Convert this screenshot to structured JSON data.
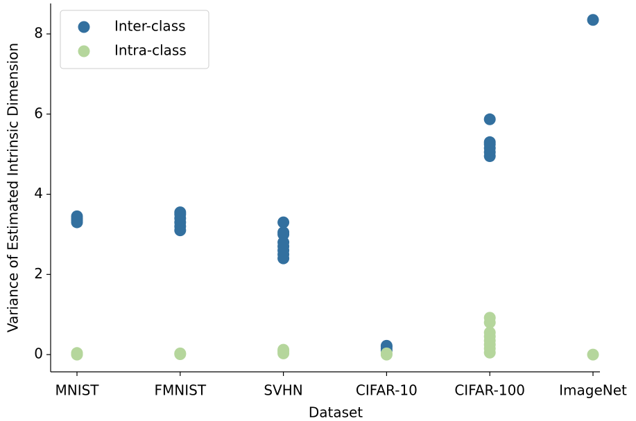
{
  "chart_data": {
    "type": "scatter",
    "xlabel": "Dataset",
    "ylabel": "Variance of Estimated Intrinsic Dimension",
    "categories": [
      "MNIST",
      "FMNIST",
      "SVHN",
      "CIFAR-10",
      "CIFAR-100",
      "ImageNet"
    ],
    "ylim": [
      -0.43,
      8.76
    ],
    "yticks": [
      0,
      2,
      4,
      6,
      8
    ],
    "legend": "upper left",
    "series": [
      {
        "name": "Inter-class",
        "color": "#33709f",
        "x": [
          "MNIST",
          "MNIST",
          "MNIST",
          "MNIST",
          "FMNIST",
          "FMNIST",
          "FMNIST",
          "FMNIST",
          "FMNIST",
          "FMNIST",
          "SVHN",
          "SVHN",
          "SVHN",
          "SVHN",
          "SVHN",
          "SVHN",
          "SVHN",
          "SVHN",
          "CIFAR-10",
          "CIFAR-10",
          "CIFAR-10",
          "CIFAR-10",
          "CIFAR-100",
          "CIFAR-100",
          "CIFAR-100",
          "CIFAR-100",
          "CIFAR-100",
          "CIFAR-100",
          "ImageNet"
        ],
        "values": [
          3.3,
          3.35,
          3.4,
          3.45,
          3.1,
          3.2,
          3.3,
          3.4,
          3.5,
          3.55,
          2.4,
          2.5,
          2.6,
          2.7,
          2.8,
          3.0,
          3.05,
          3.3,
          0.1,
          0.15,
          0.2,
          0.22,
          4.95,
          5.05,
          5.15,
          5.25,
          5.3,
          5.87,
          8.35
        ]
      },
      {
        "name": "Intra-class",
        "color": "#b5d69c",
        "x": [
          "MNIST",
          "MNIST",
          "MNIST",
          "FMNIST",
          "FMNIST",
          "SVHN",
          "SVHN",
          "SVHN",
          "CIFAR-10",
          "CIFAR-10",
          "CIFAR-100",
          "CIFAR-100",
          "CIFAR-100",
          "CIFAR-100",
          "CIFAR-100",
          "CIFAR-100",
          "CIFAR-100",
          "CIFAR-100",
          "ImageNet"
        ],
        "values": [
          0,
          0.02,
          0.04,
          0.01,
          0.03,
          0.03,
          0.08,
          0.12,
          0,
          0.03,
          0.05,
          0.15,
          0.25,
          0.35,
          0.45,
          0.55,
          0.8,
          0.92,
          0
        ]
      }
    ]
  }
}
